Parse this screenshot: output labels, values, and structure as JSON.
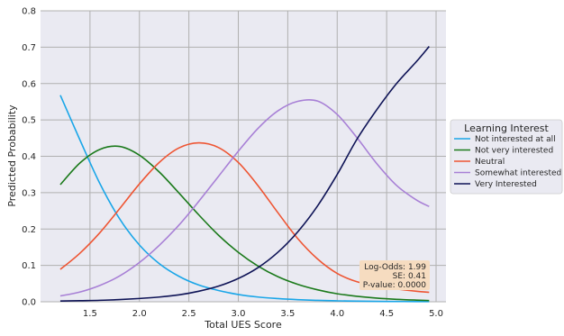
{
  "chart_data": {
    "type": "line",
    "title": "",
    "xlabel": "Total UES Score",
    "ylabel": "Predicted Probability",
    "xlim": [
      1.0,
      5.1
    ],
    "ylim": [
      0.0,
      0.8
    ],
    "xticks": [
      "1.5",
      "2.0",
      "2.5",
      "3.0",
      "3.5",
      "4.0",
      "4.5",
      "5.0"
    ],
    "yticks": [
      "0.0",
      "0.1",
      "0.2",
      "0.3",
      "0.4",
      "0.5",
      "0.6",
      "0.7",
      "0.8"
    ],
    "grid": true,
    "legend": {
      "title": "Learning Interest",
      "placement": "outside-right"
    },
    "annotation": {
      "lines": [
        "Log-Odds: 1.99",
        "SE: 0.41",
        "P-value: 0.0000"
      ],
      "placement": "bottom-right"
    },
    "x": [
      1.2,
      1.4,
      1.6,
      1.8,
      2.0,
      2.2,
      2.4,
      2.6,
      2.8,
      3.0,
      3.2,
      3.4,
      3.6,
      3.8,
      4.0,
      4.2,
      4.4,
      4.6,
      4.8,
      4.93
    ],
    "series": [
      {
        "name": "Not interested at all",
        "color": "#1aa6e8",
        "values": [
          0.568,
          0.444,
          0.325,
          0.228,
          0.156,
          0.105,
          0.07,
          0.046,
          0.031,
          0.02,
          0.013,
          0.0088,
          0.0058,
          0.0038,
          0.0025,
          0.0017,
          0.0011,
          0.00073,
          0.00049,
          0.00038
        ]
      },
      {
        "name": "Not very interested",
        "color": "#1b7a1b",
        "values": [
          0.322,
          0.382,
          0.419,
          0.427,
          0.403,
          0.357,
          0.299,
          0.239,
          0.183,
          0.136,
          0.098,
          0.069,
          0.048,
          0.033,
          0.022,
          0.015,
          0.01,
          0.0067,
          0.0045,
          0.0034
        ]
      },
      {
        "name": "Neutral",
        "color": "#ee5533",
        "values": [
          0.089,
          0.134,
          0.19,
          0.256,
          0.324,
          0.383,
          0.423,
          0.437,
          0.424,
          0.383,
          0.319,
          0.245,
          0.174,
          0.118,
          0.078,
          0.055,
          0.043,
          0.035,
          0.029,
          0.026
        ]
      },
      {
        "name": "Somewhat interested",
        "color": "#a880d6",
        "values": [
          0.016,
          0.027,
          0.045,
          0.071,
          0.108,
          0.155,
          0.211,
          0.276,
          0.345,
          0.414,
          0.477,
          0.525,
          0.551,
          0.552,
          0.515,
          0.451,
          0.38,
          0.32,
          0.28,
          0.262
        ]
      },
      {
        "name": "Very Interested",
        "color": "#0e1356",
        "values": [
          0.002,
          0.003,
          0.004,
          0.006,
          0.009,
          0.013,
          0.019,
          0.029,
          0.043,
          0.064,
          0.094,
          0.136,
          0.192,
          0.263,
          0.35,
          0.447,
          0.528,
          0.6,
          0.66,
          0.702
        ]
      }
    ]
  }
}
